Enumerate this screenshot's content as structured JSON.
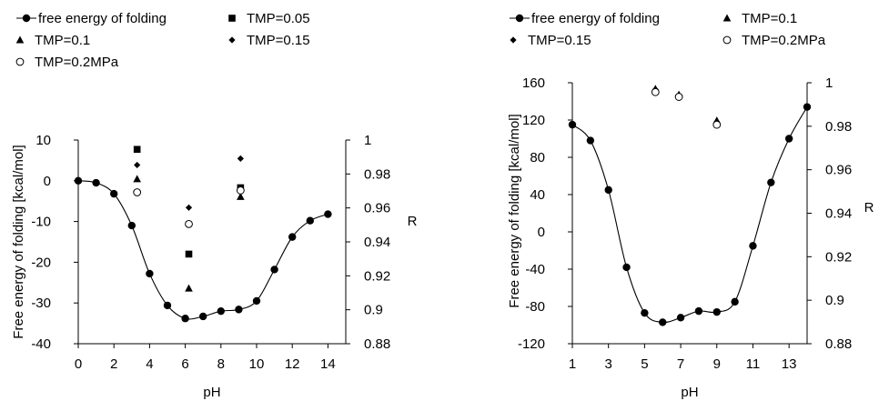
{
  "chart_data": [
    {
      "type": "scatter",
      "xlabel": "pH",
      "ylabel": "Free energy of folding [kcal/mol]",
      "y2label": "R",
      "xlim": [
        0,
        15
      ],
      "xticks": [
        "0",
        "2",
        "4",
        "6",
        "8",
        "10",
        "12",
        "14"
      ],
      "ylim": [
        -40,
        10
      ],
      "yticks": [
        "10",
        "0",
        "-10",
        "-20",
        "-30",
        "-40"
      ],
      "y2lim": [
        0.88,
        1.0
      ],
      "y2ticks": [
        "1",
        "0.98",
        "0.96",
        "0.94",
        "0.92",
        "0.9",
        "0.88"
      ],
      "legend_position": "top",
      "legend": [
        {
          "label": "free energy of folding",
          "marker": "line-dot"
        },
        {
          "label": "TMP=0.05",
          "marker": "square"
        },
        {
          "label": "TMP=0.1",
          "marker": "triangle"
        },
        {
          "label": "TMP=0.15",
          "marker": "diamond"
        },
        {
          "label": "TMP=0.2MPa",
          "marker": "circle-open"
        }
      ],
      "series": [
        {
          "name": "free energy of folding",
          "axis": "left",
          "marker": "dot",
          "line": true,
          "x": [
            0,
            1,
            2,
            3,
            4,
            5,
            6,
            7,
            8,
            9,
            10,
            11,
            12,
            13,
            14
          ],
          "y": [
            0,
            -0.5,
            -3.2,
            -11,
            -22.8,
            -30.6,
            -33.8,
            -33.3,
            -32,
            -31.6,
            -29.5,
            -21.8,
            -13.8,
            -9.8,
            -8.2
          ]
        },
        {
          "name": "TMP=0.05",
          "axis": "right",
          "marker": "square",
          "x": [
            3.3,
            6.2,
            9.1
          ],
          "y": [
            0.9945,
            0.9328,
            0.9719
          ]
        },
        {
          "name": "TMP=0.1",
          "axis": "right",
          "marker": "triangle",
          "x": [
            3.3,
            6.2,
            9.1
          ],
          "y": [
            0.977,
            0.9126,
            0.9666
          ]
        },
        {
          "name": "TMP=0.15",
          "axis": "right",
          "marker": "diamond",
          "x": [
            3.3,
            6.2,
            9.1
          ],
          "y": [
            0.9853,
            0.9602,
            0.9891
          ]
        },
        {
          "name": "TMP=0.2MPa",
          "axis": "right",
          "marker": "circle-open",
          "x": [
            3.3,
            6.2,
            9.1
          ],
          "y": [
            0.9692,
            0.9505,
            0.9703
          ]
        }
      ]
    },
    {
      "type": "scatter",
      "xlabel": "pH",
      "ylabel": "Free energy of folding [kcal/mol]",
      "y2label": "R",
      "xlim": [
        1,
        14
      ],
      "xticks": [
        "1",
        "3",
        "5",
        "7",
        "9",
        "11",
        "13"
      ],
      "ylim": [
        -120,
        160
      ],
      "yticks": [
        "160",
        "120",
        "80",
        "40",
        "0",
        "-40",
        "-80",
        "-120"
      ],
      "y2lim": [
        0.88,
        1.0
      ],
      "y2ticks": [
        "1",
        "0.98",
        "0.96",
        "0.94",
        "0.92",
        "0.9",
        "0.88"
      ],
      "legend_position": "top",
      "legend": [
        {
          "label": "free energy of folding",
          "marker": "line-dot"
        },
        {
          "label": "TMP=0.1",
          "marker": "triangle"
        },
        {
          "label": "TMP=0.15",
          "marker": "diamond"
        },
        {
          "label": "TMP=0.2MPa",
          "marker": "circle-open"
        }
      ],
      "series": [
        {
          "name": "free energy of folding",
          "axis": "left",
          "marker": "dot",
          "line": true,
          "x": [
            1,
            2,
            3,
            4,
            5,
            6,
            7,
            8,
            9,
            10,
            11,
            12,
            13,
            14
          ],
          "y": [
            115,
            98,
            45,
            -38,
            -87,
            -97,
            -92,
            -85,
            -86,
            -75,
            -15,
            53,
            100,
            134
          ]
        },
        {
          "name": "TMP=0.1",
          "axis": "right",
          "marker": "triangle",
          "x": [
            5.6,
            6.9,
            9.0
          ],
          "y": [
            0.9972,
            0.9945,
            0.9826
          ]
        },
        {
          "name": "TMP=0.15",
          "axis": "right",
          "marker": "diamond",
          "x": [
            5.6,
            6.9,
            9.0
          ],
          "y": [
            0.9969,
            0.994,
            0.982
          ]
        },
        {
          "name": "TMP=0.2MPa",
          "axis": "right",
          "marker": "circle-open",
          "x": [
            5.6,
            6.9,
            9.0
          ],
          "y": [
            0.9957,
            0.9935,
            0.9807
          ]
        }
      ]
    }
  ]
}
